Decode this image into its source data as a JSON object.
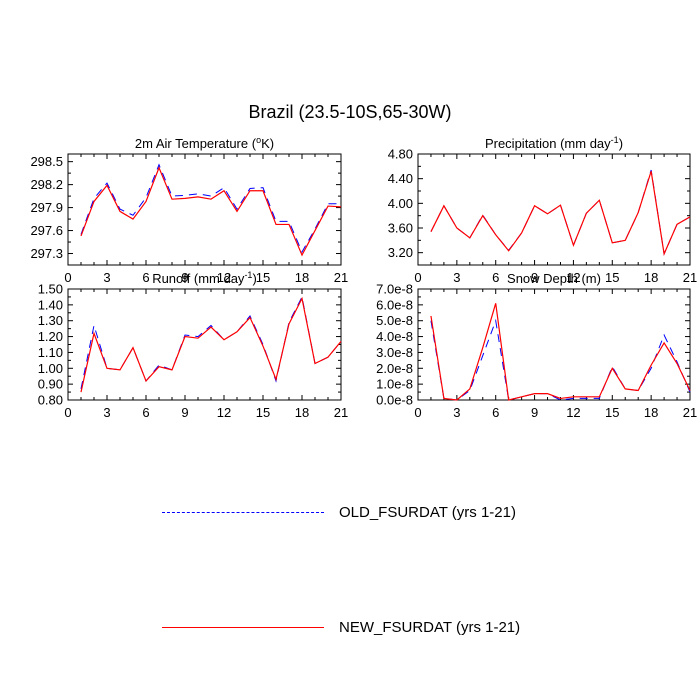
{
  "title": "Brazil (23.5-10S,65-30W)",
  "colors": {
    "old": "#0000ff",
    "new": "#ff0000"
  },
  "legend": [
    {
      "label": "OLD_FSURDAT (yrs 1-21)",
      "style": "dashed"
    },
    {
      "label": "NEW_FSURDAT (yrs 1-21)",
      "style": "solid"
    }
  ],
  "chart_data": [
    {
      "type": "line",
      "title_main": "2m Air Temperature (",
      "title_sup": "o",
      "title_end": "K)",
      "x": [
        1,
        2,
        3,
        4,
        5,
        6,
        7,
        8,
        9,
        10,
        11,
        12,
        13,
        14,
        15,
        16,
        17,
        18,
        19,
        20,
        21
      ],
      "xlim": [
        0,
        21
      ],
      "xticks": [
        "0",
        "3",
        "6",
        "9",
        "12",
        "15",
        "18",
        "21"
      ],
      "ylim": [
        297.15,
        298.6
      ],
      "ytick_values": [
        297.3,
        297.6,
        297.9,
        298.2,
        298.5
      ],
      "yticks": [
        "297.3",
        "297.6",
        "297.9",
        "298.2",
        "298.5"
      ],
      "series": [
        {
          "name": "OLD_FSURDAT (yrs 1-21)",
          "values": [
            297.55,
            298.02,
            298.22,
            297.88,
            297.8,
            298.03,
            298.46,
            298.05,
            298.06,
            298.08,
            298.05,
            298.16,
            297.88,
            298.15,
            298.16,
            297.72,
            297.72,
            297.32,
            297.62,
            297.95,
            297.95
          ]
        },
        {
          "name": "NEW_FSURDAT (yrs 1-21)",
          "values": [
            297.53,
            297.98,
            298.19,
            297.85,
            297.75,
            297.98,
            298.42,
            298.01,
            298.02,
            298.04,
            298.01,
            298.12,
            297.85,
            298.12,
            298.12,
            297.68,
            297.68,
            297.28,
            297.6,
            297.92,
            297.91
          ]
        }
      ]
    },
    {
      "type": "line",
      "title_main": "Precipitation (mm day",
      "title_sup": "-1",
      "title_end": ")",
      "x": [
        1,
        2,
        3,
        4,
        5,
        6,
        7,
        8,
        9,
        10,
        11,
        12,
        13,
        14,
        15,
        16,
        17,
        18,
        19,
        20,
        21
      ],
      "xlim": [
        0,
        21
      ],
      "xticks": [
        "0",
        "3",
        "6",
        "9",
        "12",
        "15",
        "18",
        "21"
      ],
      "ylim": [
        3.0,
        4.8
      ],
      "ytick_values": [
        3.2,
        3.6,
        4.0,
        4.4,
        4.8
      ],
      "yticks": [
        "3.20",
        "3.60",
        "4.00",
        "4.40",
        "4.80"
      ],
      "series": [
        {
          "name": "OLD_FSURDAT (yrs 1-21)",
          "values": [
            3.54,
            3.96,
            3.6,
            3.44,
            3.81,
            3.49,
            3.24,
            3.52,
            3.96,
            3.83,
            3.97,
            3.32,
            3.84,
            4.05,
            3.36,
            3.4,
            3.85,
            4.54,
            3.18,
            3.66,
            3.78
          ]
        },
        {
          "name": "NEW_FSURDAT (yrs 1-21)",
          "values": [
            3.54,
            3.96,
            3.6,
            3.44,
            3.8,
            3.49,
            3.23,
            3.52,
            3.96,
            3.83,
            3.97,
            3.32,
            3.84,
            4.05,
            3.36,
            3.4,
            3.85,
            4.52,
            3.18,
            3.66,
            3.78
          ]
        }
      ]
    },
    {
      "type": "line",
      "title_main": "Runoff (mm day",
      "title_sup": "-1",
      "title_end": ")",
      "x": [
        1,
        2,
        3,
        4,
        5,
        6,
        7,
        8,
        9,
        10,
        11,
        12,
        13,
        14,
        15,
        16,
        17,
        18,
        19,
        20,
        21
      ],
      "xlim": [
        0,
        21
      ],
      "xticks": [
        "0",
        "3",
        "6",
        "9",
        "12",
        "15",
        "18",
        "21"
      ],
      "ylim": [
        0.8,
        1.5
      ],
      "ytick_values": [
        0.8,
        0.9,
        1.0,
        1.1,
        1.2,
        1.3,
        1.4,
        1.5
      ],
      "yticks": [
        "0.80",
        "0.90",
        "1.00",
        "1.10",
        "1.20",
        "1.30",
        "1.40",
        "1.50"
      ],
      "series": [
        {
          "name": "OLD_FSURDAT (yrs 1-21)",
          "values": [
            0.87,
            1.27,
            1.0,
            0.99,
            1.13,
            0.92,
            1.02,
            0.99,
            1.21,
            1.2,
            1.27,
            1.18,
            1.23,
            1.33,
            1.15,
            0.92,
            1.29,
            1.45,
            1.03,
            1.07,
            1.17
          ]
        },
        {
          "name": "NEW_FSURDAT (yrs 1-21)",
          "values": [
            0.85,
            1.22,
            1.0,
            0.99,
            1.13,
            0.92,
            1.01,
            0.99,
            1.2,
            1.19,
            1.26,
            1.18,
            1.23,
            1.32,
            1.14,
            0.93,
            1.28,
            1.44,
            1.03,
            1.07,
            1.17
          ]
        }
      ]
    },
    {
      "type": "line",
      "title_main": "Snow Depth (m)",
      "title_sup": "",
      "title_end": "",
      "x": [
        1,
        2,
        3,
        4,
        5,
        6,
        7,
        8,
        9,
        10,
        11,
        12,
        13,
        14,
        15,
        16,
        17,
        18,
        19,
        20,
        21
      ],
      "xlim": [
        0,
        21
      ],
      "xticks": [
        "0",
        "3",
        "6",
        "9",
        "12",
        "15",
        "18",
        "21"
      ],
      "ylim": [
        0,
        7e-08
      ],
      "ytick_values": [
        0,
        1e-08,
        2e-08,
        3e-08,
        4e-08,
        5e-08,
        6e-08,
        7e-08
      ],
      "yticks": [
        "0.0e-8",
        "1.0e-8",
        "2.0e-8",
        "3.0e-8",
        "4.0e-8",
        "5.0e-8",
        "6.0e-8",
        "7.0e-8"
      ],
      "series": [
        {
          "name": "OLD_FSURDAT (yrs 1-21)",
          "values": [
            5e-08,
            1e-09,
            0.0,
            6e-09,
            2.8e-08,
            5e-08,
            0.0,
            2e-09,
            4e-09,
            4e-09,
            0.0,
            1e-09,
            1e-09,
            1e-09,
            2.1e-08,
            7e-09,
            6e-09,
            2e-08,
            4.1e-08,
            2.4e-08,
            5e-09
          ]
        },
        {
          "name": "NEW_FSURDAT (yrs 1-21)",
          "values": [
            5.3e-08,
            1e-09,
            0.0,
            7e-09,
            3.3e-08,
            6.1e-08,
            0.0,
            2e-09,
            4e-09,
            4e-09,
            1e-09,
            2e-09,
            2e-09,
            2e-09,
            2e-08,
            7e-09,
            6e-09,
            2.2e-08,
            3.6e-08,
            2.3e-08,
            6e-09
          ]
        }
      ]
    }
  ]
}
